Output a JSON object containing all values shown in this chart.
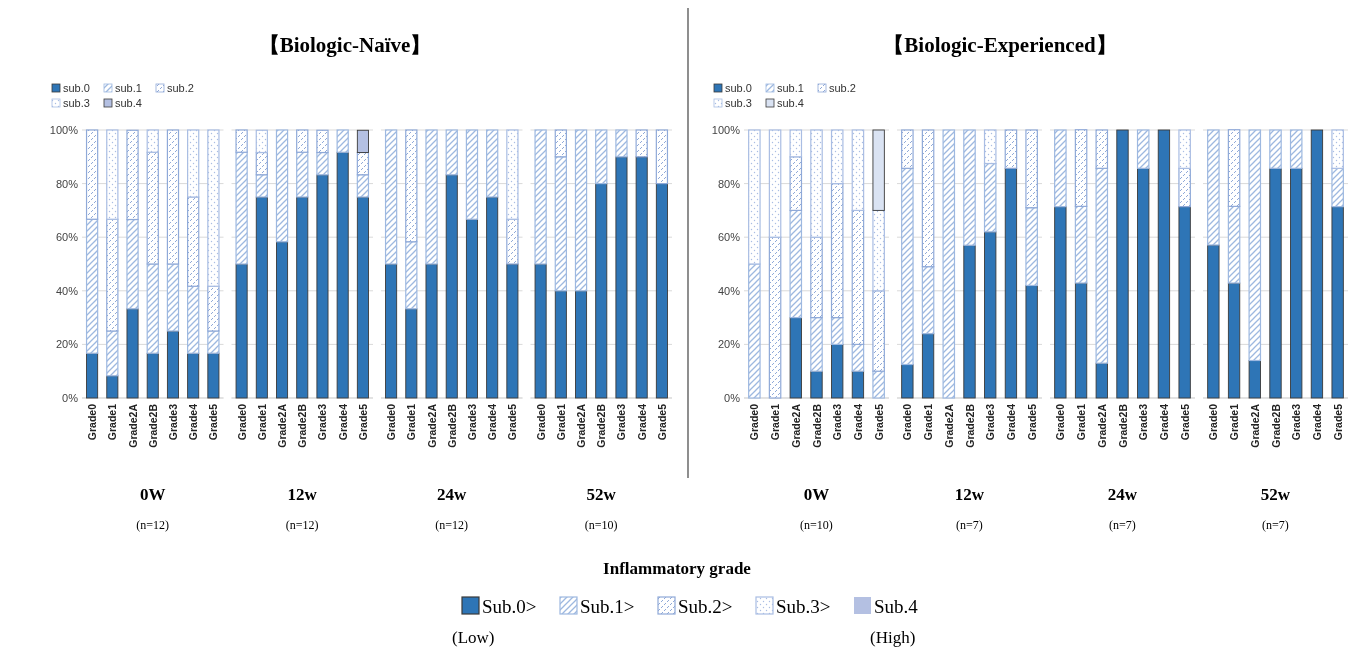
{
  "chart_data": [
    {
      "type": "bar",
      "stacked": true,
      "xlabel": "0W",
      "annotations": [
        "(n=12)"
      ],
      "legend": "top left",
      "grid": "y",
      "categories": [
        "Grade0",
        "Grade1",
        "Grade2A",
        "Grade2B",
        "Grade3",
        "Grade4",
        "Grade5"
      ],
      "ylim": [
        0,
        100
      ],
      "yticks": [
        {
          "value": 0,
          "label": "0%"
        },
        {
          "value": 20,
          "label": "20%"
        },
        {
          "value": 40,
          "label": "40%"
        },
        {
          "value": 60,
          "label": "60%"
        },
        {
          "value": 80,
          "label": "80%"
        },
        {
          "value": 100,
          "label": "100%"
        }
      ],
      "series": [
        {
          "name": "sub.0",
          "color": "#2e75b6",
          "values": [
            16.7,
            8.3,
            33.3,
            16.7,
            25,
            16.7,
            16.7
          ]
        },
        {
          "name": "sub.1",
          "color": "#9db8e0",
          "values": [
            50,
            16.7,
            33.3,
            33.3,
            25,
            25,
            8.3
          ]
        },
        {
          "name": "sub.2",
          "color": "#8fa9d8",
          "values": [
            33.3,
            41.7,
            33.3,
            41.7,
            50,
            33.3,
            16.7
          ]
        },
        {
          "name": "sub.3",
          "color": "#a9bde3",
          "values": [
            0,
            33.3,
            0,
            8.3,
            0,
            25,
            58.3
          ]
        },
        {
          "name": "sub.4",
          "color": "#b4c0e2",
          "values": [
            0,
            0,
            0,
            0,
            0,
            0,
            0
          ]
        }
      ]
    },
    {
      "type": "bar",
      "stacked": true,
      "xlabel": "12w",
      "annotations": [
        "(n=12)"
      ],
      "grid": "y",
      "tick_labels": "x",
      "categories": [
        "Grade0",
        "Grade1",
        "Grade2A",
        "Grade2B",
        "Grade3",
        "Grade4",
        "Grade5"
      ],
      "ylim": [
        0,
        100
      ],
      "series": [
        {
          "color": "#2e75b6",
          "values": [
            50,
            75,
            58.3,
            75,
            83.3,
            91.7,
            75
          ]
        },
        {
          "color": "#9db8e0",
          "values": [
            41.7,
            8.3,
            41.7,
            16.7,
            8.3,
            8.3,
            8.3
          ]
        },
        {
          "color": "#8fa9d8",
          "values": [
            8.3,
            8.3,
            0,
            8.3,
            8.3,
            0,
            8.3
          ]
        },
        {
          "color": "#a9bde3",
          "values": [
            0,
            8.3,
            0,
            0,
            0,
            0,
            0
          ]
        },
        {
          "color": "#b4c0e2",
          "values": [
            0,
            0,
            0,
            0,
            0,
            0,
            8.3
          ]
        }
      ]
    },
    {
      "type": "bar",
      "stacked": true,
      "xlabel": "24w",
      "annotations": [
        "(n=12)"
      ],
      "grid": "y",
      "tick_labels": "x",
      "categories": [
        "Grade0",
        "Grade1",
        "Grade2A",
        "Grade2B",
        "Grade3",
        "Grade4",
        "Grade5"
      ],
      "ylim": [
        0,
        100
      ],
      "series": [
        {
          "color": "#2e75b6",
          "values": [
            50,
            33.3,
            50,
            83.3,
            66.7,
            75,
            50
          ]
        },
        {
          "color": "#9db8e0",
          "values": [
            50,
            25,
            50,
            16.7,
            33.3,
            25,
            0
          ]
        },
        {
          "color": "#8fa9d8",
          "values": [
            0,
            41.7,
            0,
            0,
            0,
            0,
            16.7
          ]
        },
        {
          "color": "#a9bde3",
          "values": [
            0,
            0,
            0,
            0,
            0,
            0,
            33.3
          ]
        },
        {
          "color": "#b4c0e2",
          "values": [
            0,
            0,
            0,
            0,
            0,
            0,
            0
          ]
        }
      ]
    },
    {
      "type": "bar",
      "stacked": true,
      "xlabel": "52w",
      "annotations": [
        "(n=10)"
      ],
      "grid": "y",
      "tick_labels": "x",
      "categories": [
        "Grade0",
        "Grade1",
        "Grade2A",
        "Grade2B",
        "Grade3",
        "Grade4",
        "Grade5"
      ],
      "ylim": [
        0,
        100
      ],
      "series": [
        {
          "color": "#2e75b6",
          "values": [
            50,
            40,
            40,
            80,
            90,
            90,
            80
          ]
        },
        {
          "color": "#9db8e0",
          "values": [
            50,
            50,
            60,
            20,
            10,
            0,
            0
          ]
        },
        {
          "color": "#8fa9d8",
          "values": [
            0,
            10,
            0,
            0,
            0,
            10,
            20
          ]
        },
        {
          "color": "#a9bde3",
          "values": [
            0,
            0,
            0,
            0,
            0,
            0,
            0
          ]
        },
        {
          "color": "#b4c0e2",
          "values": [
            0,
            0,
            0,
            0,
            0,
            0,
            0
          ]
        }
      ]
    },
    {
      "type": "bar",
      "stacked": true,
      "xlabel": "0W",
      "annotations": [
        "(n=10)"
      ],
      "legend": "top left",
      "grid": "y",
      "categories": [
        "Grade0",
        "Grade1",
        "Grade2A",
        "Grade2B",
        "Grade3",
        "Grade4",
        "Grade5"
      ],
      "ylim": [
        0,
        100
      ],
      "yticks": [
        {
          "value": 0,
          "label": "0%"
        },
        {
          "value": 20,
          "label": "20%"
        },
        {
          "value": 40,
          "label": "40%"
        },
        {
          "value": 60,
          "label": "60%"
        },
        {
          "value": 80,
          "label": "80%"
        },
        {
          "value": 100,
          "label": "100%"
        }
      ],
      "series": [
        {
          "name": "sub.0",
          "color": "#2e75b6",
          "values": [
            0,
            0,
            30,
            10,
            20,
            10,
            0
          ]
        },
        {
          "name": "sub.1",
          "color": "#9db8e0",
          "values": [
            50,
            0,
            40,
            20,
            10,
            10,
            10
          ]
        },
        {
          "name": "sub.2",
          "color": "#8fa9d8",
          "values": [
            0,
            60,
            20,
            30,
            50,
            50,
            30
          ]
        },
        {
          "name": "sub.3",
          "color": "#a9bde3",
          "values": [
            50,
            40,
            10,
            40,
            20,
            30,
            30
          ]
        },
        {
          "name": "sub.4",
          "color": "#dae3f3",
          "values": [
            0,
            0,
            0,
            0,
            0,
            0,
            30
          ]
        }
      ]
    },
    {
      "type": "bar",
      "stacked": true,
      "xlabel": "12w",
      "annotations": [
        "(n=7)"
      ],
      "grid": "y",
      "tick_labels": "x",
      "categories": [
        "Grade0",
        "Grade1",
        "Grade2A",
        "Grade2B",
        "Grade3",
        "Grade4",
        "Grade5"
      ],
      "ylim": [
        0,
        100
      ],
      "series": [
        {
          "color": "#2e75b6",
          "values": [
            12.5,
            24,
            0,
            57,
            62,
            85.7,
            42
          ]
        },
        {
          "color": "#9db8e0",
          "values": [
            73.2,
            25,
            100,
            43,
            25.5,
            0,
            29
          ]
        },
        {
          "color": "#8fa9d8",
          "values": [
            14.3,
            51,
            0,
            0,
            0,
            14.3,
            29
          ]
        },
        {
          "color": "#a9bde3",
          "values": [
            0,
            0,
            0,
            0,
            12.5,
            0,
            0
          ]
        },
        {
          "color": "#dae3f3",
          "values": [
            0,
            0,
            0,
            0,
            0,
            0,
            0
          ]
        }
      ]
    },
    {
      "type": "bar",
      "stacked": true,
      "xlabel": "24w",
      "annotations": [
        "(n=7)"
      ],
      "grid": "y",
      "tick_labels": "x",
      "categories": [
        "Grade0",
        "Grade1",
        "Grade2A",
        "Grade2B",
        "Grade3",
        "Grade4",
        "Grade5"
      ],
      "ylim": [
        0,
        100
      ],
      "series": [
        {
          "color": "#2e75b6",
          "values": [
            71.4,
            42.9,
            13,
            100,
            85.7,
            100,
            71.4
          ]
        },
        {
          "color": "#9db8e0",
          "values": [
            28.6,
            28.6,
            72.7,
            0,
            14.3,
            0,
            0
          ]
        },
        {
          "color": "#8fa9d8",
          "values": [
            0,
            28.6,
            14.3,
            0,
            0,
            0,
            14.3
          ]
        },
        {
          "color": "#a9bde3",
          "values": [
            0,
            0,
            0,
            0,
            0,
            0,
            14.3
          ]
        },
        {
          "color": "#dae3f3",
          "values": [
            0,
            0,
            0,
            0,
            0,
            0,
            0
          ]
        }
      ]
    },
    {
      "type": "bar",
      "stacked": true,
      "xlabel": "52w",
      "annotations": [
        "(n=7)"
      ],
      "grid": "y",
      "tick_labels": "x",
      "categories": [
        "Grade0",
        "Grade1",
        "Grade2A",
        "Grade2B",
        "Grade3",
        "Grade4",
        "Grade5"
      ],
      "ylim": [
        0,
        100
      ],
      "series": [
        {
          "color": "#2e75b6",
          "values": [
            57.1,
            42.9,
            14,
            85.7,
            85.7,
            100,
            71.4
          ]
        },
        {
          "color": "#9db8e0",
          "values": [
            42.9,
            28.6,
            86,
            14.3,
            14.3,
            0,
            14.3
          ]
        },
        {
          "color": "#8fa9d8",
          "values": [
            0,
            28.6,
            0,
            0,
            0,
            0,
            0
          ]
        },
        {
          "color": "#a9bde3",
          "values": [
            0,
            0,
            0,
            0,
            0,
            0,
            14.3
          ]
        },
        {
          "color": "#dae3f3",
          "values": [
            0,
            0,
            0,
            0,
            0,
            0,
            0
          ]
        }
      ]
    },
    {
      "type": "other",
      "title": "Inflammatory grade",
      "categories": [
        "Sub.0>",
        "Sub.1>",
        "Sub.2>",
        "Sub.3>",
        "Sub.4"
      ],
      "colors": [
        "#2e75b6",
        "#9db8e0",
        "#8fa9d8",
        "#a9bde3",
        "#b4c0e2"
      ],
      "annotations": [
        "【Biologic-Naïve】",
        "【Biologic-Experienced】",
        "(Low)",
        "(High)"
      ]
    }
  ]
}
